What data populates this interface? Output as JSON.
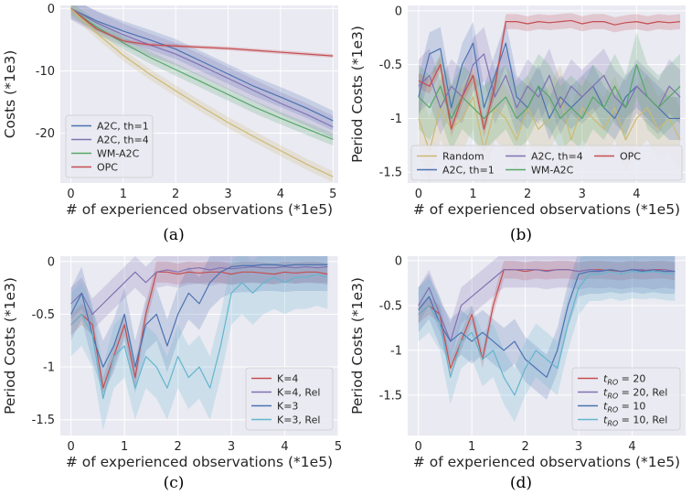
{
  "colors": {
    "Random": "#ccb974",
    "A2C, th=1": "#4c72b0",
    "A2C, th=4": "#8172b2",
    "WM-A2C": "#55a868",
    "OPC": "#c44e52",
    "K=4": "#c44e52",
    "K=4, Rel": "#8172b2",
    "K=3": "#4c72b0",
    "K=3, Rel": "#64b5cd",
    "grid": "#ffffff",
    "plot_bg": "#eaeaf2"
  },
  "chart_data": [
    {
      "id": "a",
      "type": "line",
      "caption": "(a)",
      "xlabel": "# of experienced observations (*1e5)",
      "ylabel": "Costs (*1e3)",
      "xlim": [
        -0.2,
        5.1
      ],
      "ylim": [
        -28,
        0.5
      ],
      "xticks": [
        0,
        1,
        2,
        3,
        4,
        5
      ],
      "yticks": [
        0,
        -10,
        -20
      ],
      "legend": "lower-left",
      "legend_cols": 1,
      "series": [
        {
          "name": "A2C, th=1",
          "color": "#4c72b0",
          "band": 1.6,
          "x": [
            0,
            0.5,
            1,
            1.5,
            2,
            2.5,
            3,
            3.5,
            4,
            4.5,
            5
          ],
          "y": [
            0,
            -2.0,
            -3.6,
            -5.0,
            -6.5,
            -8.5,
            -10.5,
            -12.5,
            -14.2,
            -16.0,
            -18.0
          ]
        },
        {
          "name": "A2C, th=4",
          "color": "#8172b2",
          "band": 1.8,
          "x": [
            0,
            0.5,
            1,
            1.5,
            2,
            2.5,
            3,
            3.5,
            4,
            4.5,
            5
          ],
          "y": [
            0,
            -2.3,
            -4.2,
            -5.8,
            -7.3,
            -9.2,
            -11.2,
            -13.2,
            -15.2,
            -17.0,
            -19.0
          ]
        },
        {
          "name": "WM-A2C",
          "color": "#55a868",
          "band": 1.0,
          "x": [
            0,
            0.5,
            1,
            1.5,
            2,
            2.5,
            3,
            3.5,
            4,
            4.5,
            5
          ],
          "y": [
            0,
            -3.0,
            -5.5,
            -7.8,
            -9.8,
            -11.8,
            -13.8,
            -15.8,
            -17.6,
            -19.3,
            -21.0
          ]
        },
        {
          "name": "OPC",
          "color": "#c44e52",
          "band": 0.3,
          "x": [
            0,
            0.5,
            1,
            1.5,
            2,
            2.5,
            3,
            3.5,
            4,
            4.5,
            5
          ],
          "y": [
            0,
            -3.3,
            -5.2,
            -5.8,
            -6.0,
            -6.2,
            -6.4,
            -6.7,
            -7.0,
            -7.3,
            -7.6
          ]
        },
        {
          "name": "",
          "color": "#ccb974",
          "band": 0.9,
          "x": [
            0,
            0.5,
            1,
            1.5,
            2,
            2.5,
            3,
            3.5,
            4,
            4.5,
            5
          ],
          "y": [
            0,
            -4.0,
            -7.5,
            -10.5,
            -13.2,
            -15.8,
            -18.3,
            -20.6,
            -22.8,
            -25.0,
            -27.0
          ]
        }
      ]
    },
    {
      "id": "b",
      "type": "line",
      "caption": "(b)",
      "xlabel": "# of experienced observations (*1e5)",
      "ylabel": "Period Costs (*1e3)",
      "xlim": [
        -0.2,
        4.9
      ],
      "ylim": [
        -1.6,
        0.05
      ],
      "xticks": [
        0,
        1,
        2,
        3,
        4
      ],
      "yticks": [
        0.0,
        -0.5,
        -1.0,
        -1.5
      ],
      "legend": "bottom",
      "legend_cols": 3,
      "series": [
        {
          "name": "Random",
          "color": "#ccb974",
          "band": 0.3,
          "x": [
            0,
            0.2,
            0.4,
            0.6,
            0.8,
            1.0,
            1.2,
            1.4,
            1.6,
            1.8,
            2.0,
            2.2,
            2.4,
            2.6,
            2.8,
            3.0,
            3.2,
            3.4,
            3.6,
            3.8,
            4.0,
            4.2,
            4.4,
            4.6,
            4.8
          ],
          "y": [
            -1.0,
            -1.3,
            -0.9,
            -1.1,
            -1.0,
            -0.8,
            -1.3,
            -0.9,
            -1.0,
            -1.2,
            -0.9,
            -1.1,
            -1.0,
            -0.8,
            -1.2,
            -0.9,
            -1.0,
            -1.1,
            -0.9,
            -1.2,
            -1.0,
            -0.9,
            -1.1,
            -1.0,
            -1.2
          ]
        },
        {
          "name": "A2C, th=1",
          "color": "#4c72b0",
          "band": 0.2,
          "x": [
            0,
            0.2,
            0.4,
            0.6,
            0.8,
            1.0,
            1.2,
            1.4,
            1.6,
            1.8,
            2.0,
            2.2,
            2.4,
            2.6,
            2.8,
            3.0,
            3.2,
            3.4,
            3.6,
            3.8,
            4.0,
            4.2,
            4.4,
            4.6,
            4.8
          ],
          "y": [
            -0.8,
            -0.4,
            -0.35,
            -0.9,
            -0.5,
            -0.3,
            -0.9,
            -0.6,
            -0.3,
            -0.8,
            -0.9,
            -0.7,
            -1.0,
            -0.8,
            -0.9,
            -0.8,
            -0.7,
            -0.9,
            -1.0,
            -0.8,
            -0.7,
            -0.8,
            -0.9,
            -1.0,
            -1.0
          ]
        },
        {
          "name": "A2C, th=4",
          "color": "#8172b2",
          "band": 0.25,
          "x": [
            0,
            0.2,
            0.4,
            0.6,
            0.8,
            1.0,
            1.2,
            1.4,
            1.6,
            1.8,
            2.0,
            2.2,
            2.4,
            2.6,
            2.8,
            3.0,
            3.2,
            3.4,
            3.6,
            3.8,
            4.0,
            4.2,
            4.4,
            4.6,
            4.8
          ],
          "y": [
            -0.7,
            -0.6,
            -0.9,
            -0.7,
            -0.8,
            -0.5,
            -0.4,
            -0.8,
            -0.6,
            -0.9,
            -0.7,
            -0.8,
            -0.6,
            -0.9,
            -0.7,
            -0.8,
            -0.7,
            -0.6,
            -0.8,
            -0.9,
            -0.7,
            -0.8,
            -0.9,
            -0.7,
            -0.8
          ]
        },
        {
          "name": "WM-A2C",
          "color": "#55a868",
          "band": 0.3,
          "x": [
            0,
            0.2,
            0.4,
            0.6,
            0.8,
            1.0,
            1.2,
            1.4,
            1.6,
            1.8,
            2.0,
            2.2,
            2.4,
            2.6,
            2.8,
            3.0,
            3.2,
            3.4,
            3.6,
            3.8,
            4.0,
            4.2,
            4.4,
            4.6,
            4.8
          ],
          "y": [
            -0.8,
            -0.9,
            -0.7,
            -1.0,
            -0.8,
            -0.9,
            -1.0,
            -0.9,
            -0.8,
            -1.0,
            -0.9,
            -0.7,
            -0.8,
            -1.0,
            -0.9,
            -1.0,
            -0.8,
            -0.9,
            -0.7,
            -0.9,
            -0.5,
            -0.8,
            -0.9,
            -0.8,
            -0.7
          ]
        },
        {
          "name": "OPC",
          "color": "#c44e52",
          "band": 0.07,
          "x": [
            0,
            0.2,
            0.4,
            0.6,
            0.8,
            1.0,
            1.2,
            1.4,
            1.6,
            1.8,
            2.0,
            2.2,
            2.4,
            2.6,
            2.8,
            3.0,
            3.2,
            3.4,
            3.6,
            3.8,
            4.0,
            4.2,
            4.4,
            4.6,
            4.8
          ],
          "y": [
            -0.65,
            -0.7,
            -0.5,
            -1.1,
            -0.8,
            -0.6,
            -1.1,
            -0.7,
            -0.1,
            -0.1,
            -0.12,
            -0.1,
            -0.11,
            -0.1,
            -0.09,
            -0.12,
            -0.1,
            -0.1,
            -0.13,
            -0.11,
            -0.1,
            -0.12,
            -0.1,
            -0.11,
            -0.1
          ]
        }
      ]
    },
    {
      "id": "c",
      "type": "line",
      "caption": "(c)",
      "xlabel": "# of experienced observations (*1e5)",
      "ylabel": "Period Costs (*1e3)",
      "xlim": [
        -0.2,
        5.0
      ],
      "ylim": [
        -1.65,
        0.05
      ],
      "xticks": [
        0,
        1,
        2,
        3,
        4,
        5
      ],
      "yticks": [
        0.0,
        -0.5,
        -1.0,
        -1.5
      ],
      "legend": "lower-right",
      "legend_cols": 1,
      "series": [
        {
          "name": "K=4",
          "color": "#c44e52",
          "band": 0.1,
          "x": [
            0,
            0.2,
            0.4,
            0.6,
            0.8,
            1.0,
            1.2,
            1.4,
            1.6,
            1.8,
            2.0,
            2.2,
            2.4,
            2.6,
            2.8,
            3.0,
            3.2,
            3.4,
            3.6,
            3.8,
            4.0,
            4.2,
            4.4,
            4.6,
            4.8
          ],
          "y": [
            -0.6,
            -0.5,
            -0.6,
            -1.2,
            -0.9,
            -0.6,
            -1.1,
            -0.5,
            -0.1,
            -0.1,
            -0.12,
            -0.1,
            -0.11,
            -0.1,
            -0.1,
            -0.12,
            -0.1,
            -0.1,
            -0.11,
            -0.12,
            -0.1,
            -0.11,
            -0.1,
            -0.1,
            -0.12
          ]
        },
        {
          "name": "K=4, Rel",
          "color": "#8172b2",
          "band": 0.15,
          "x": [
            0,
            0.2,
            0.4,
            0.6,
            0.8,
            1.0,
            1.2,
            1.4,
            1.6,
            1.8,
            2.0,
            2.2,
            2.4,
            2.6,
            2.8,
            3.0,
            3.2,
            3.4,
            3.6,
            3.8,
            4.0,
            4.2,
            4.4,
            4.6,
            4.8
          ],
          "y": [
            -0.4,
            -0.3,
            -0.5,
            -0.4,
            -0.3,
            -0.2,
            -0.1,
            -0.2,
            -0.1,
            -0.08,
            -0.1,
            -0.07,
            -0.06,
            -0.08,
            -0.06,
            -0.07,
            -0.06,
            -0.05,
            -0.06,
            -0.06,
            -0.05,
            -0.06,
            -0.05,
            -0.06,
            -0.05
          ]
        },
        {
          "name": "K=3",
          "color": "#4c72b0",
          "band": 0.25,
          "x": [
            0,
            0.2,
            0.4,
            0.6,
            0.8,
            1.0,
            1.2,
            1.4,
            1.6,
            1.8,
            2.0,
            2.2,
            2.4,
            2.6,
            2.8,
            3.0,
            3.2,
            3.4,
            3.6,
            3.8,
            4.0,
            4.2,
            4.4,
            4.6,
            4.8
          ],
          "y": [
            -0.5,
            -0.3,
            -0.7,
            -1.0,
            -0.8,
            -0.5,
            -1.0,
            -0.6,
            -0.5,
            -0.8,
            -0.5,
            -0.3,
            -0.4,
            -0.2,
            -0.1,
            -0.05,
            -0.04,
            -0.04,
            -0.03,
            -0.03,
            -0.04,
            -0.03,
            -0.03,
            -0.03,
            -0.03
          ]
        },
        {
          "name": "K=3, Rel",
          "color": "#64b5cd",
          "band": 0.3,
          "x": [
            0,
            0.2,
            0.4,
            0.6,
            0.8,
            1.0,
            1.2,
            1.4,
            1.6,
            1.8,
            2.0,
            2.2,
            2.4,
            2.6,
            2.8,
            3.0,
            3.2,
            3.4,
            3.6,
            3.8,
            4.0,
            4.2,
            4.4,
            4.6,
            4.8
          ],
          "y": [
            -0.6,
            -0.5,
            -0.7,
            -1.3,
            -0.9,
            -0.8,
            -1.2,
            -0.9,
            -1.0,
            -1.2,
            -0.9,
            -1.1,
            -1.0,
            -1.2,
            -0.8,
            -0.3,
            -0.2,
            -0.3,
            -0.2,
            -0.15,
            -0.2,
            -0.15,
            -0.15,
            -0.12,
            -0.15
          ]
        }
      ]
    },
    {
      "id": "d",
      "type": "line",
      "caption": "(d)",
      "xlabel": "# of experienced observations (*1e5)",
      "ylabel": "Period Costs (*1e3)",
      "xlim": [
        -0.2,
        5.0
      ],
      "ylim": [
        -1.95,
        0.05
      ],
      "xticks": [
        0,
        1,
        2,
        3,
        4
      ],
      "yticks": [
        0.0,
        -0.5,
        -1.0,
        -1.5
      ],
      "legend": "lower-right",
      "legend_cols": 1,
      "legend_items": [
        {
          "base": "t",
          "sub": "RO",
          "rest": " = 20",
          "color": "#c44e52"
        },
        {
          "base": "t",
          "sub": "RO",
          "rest": " = 20, Rel",
          "color": "#8172b2"
        },
        {
          "base": "t",
          "sub": "RO",
          "rest": " = 10",
          "color": "#4c72b0"
        },
        {
          "base": "t",
          "sub": "RO",
          "rest": " = 10, Rel",
          "color": "#64b5cd"
        }
      ],
      "series": [
        {
          "color": "#c44e52",
          "band": 0.1,
          "x": [
            0,
            0.2,
            0.4,
            0.6,
            0.8,
            1.0,
            1.2,
            1.4,
            1.6,
            1.8,
            2.0,
            2.2,
            2.4,
            2.6,
            2.8,
            3.0,
            3.2,
            3.4,
            3.6,
            3.8,
            4.0,
            4.2,
            4.4,
            4.6,
            4.8
          ],
          "y": [
            -0.6,
            -0.5,
            -0.6,
            -1.2,
            -0.9,
            -0.6,
            -1.1,
            -0.5,
            -0.1,
            -0.1,
            -0.12,
            -0.1,
            -0.11,
            -0.1,
            -0.1,
            -0.12,
            -0.1,
            -0.1,
            -0.11,
            -0.12,
            -0.1,
            -0.11,
            -0.1,
            -0.1,
            -0.12
          ]
        },
        {
          "color": "#8172b2",
          "band": 0.2,
          "x": [
            0,
            0.2,
            0.4,
            0.6,
            0.8,
            1.0,
            1.2,
            1.4,
            1.6,
            1.8,
            2.0,
            2.2,
            2.4,
            2.6,
            2.8,
            3.0,
            3.2,
            3.4,
            3.6,
            3.8,
            4.0,
            4.2,
            4.4,
            4.6,
            4.8
          ],
          "y": [
            -0.5,
            -0.3,
            -0.6,
            -0.9,
            -0.5,
            -0.4,
            -0.3,
            -0.2,
            -0.1,
            -0.1,
            -0.1,
            -0.1,
            -0.12,
            -0.1,
            -0.1,
            -0.12,
            -0.1,
            -0.11,
            -0.1,
            -0.12,
            -0.1,
            -0.1,
            -0.12,
            -0.1,
            -0.12
          ]
        },
        {
          "color": "#4c72b0",
          "band": 0.25,
          "x": [
            0,
            0.2,
            0.4,
            0.6,
            0.8,
            1.0,
            1.2,
            1.4,
            1.6,
            1.8,
            2.0,
            2.2,
            2.4,
            2.6,
            2.8,
            3.0,
            3.2,
            3.4,
            3.6,
            3.8,
            4.0,
            4.2,
            4.4,
            4.6,
            4.8
          ],
          "y": [
            -0.55,
            -0.4,
            -0.7,
            -0.9,
            -0.8,
            -0.9,
            -0.8,
            -0.9,
            -1.0,
            -0.9,
            -1.1,
            -1.2,
            -1.3,
            -1.0,
            -0.5,
            -0.15,
            -0.12,
            -0.12,
            -0.1,
            -0.12,
            -0.1,
            -0.12,
            -0.1,
            -0.12,
            -0.12
          ]
        },
        {
          "color": "#64b5cd",
          "band": 0.3,
          "x": [
            0,
            0.2,
            0.4,
            0.6,
            0.8,
            1.0,
            1.2,
            1.4,
            1.6,
            1.8,
            2.0,
            2.2,
            2.4,
            2.6,
            2.8,
            3.0,
            3.2,
            3.4,
            3.6,
            3.8,
            4.0,
            4.2,
            4.4,
            4.6,
            4.8
          ],
          "y": [
            -0.6,
            -0.5,
            -0.7,
            -1.3,
            -0.9,
            -0.8,
            -1.1,
            -1.0,
            -1.3,
            -1.5,
            -1.2,
            -1.0,
            -1.1,
            -1.2,
            -0.7,
            -0.3,
            -0.15,
            -0.15,
            -0.12,
            -0.15,
            -0.12,
            -0.13,
            -0.12,
            -0.14,
            -0.15
          ]
        }
      ]
    }
  ]
}
